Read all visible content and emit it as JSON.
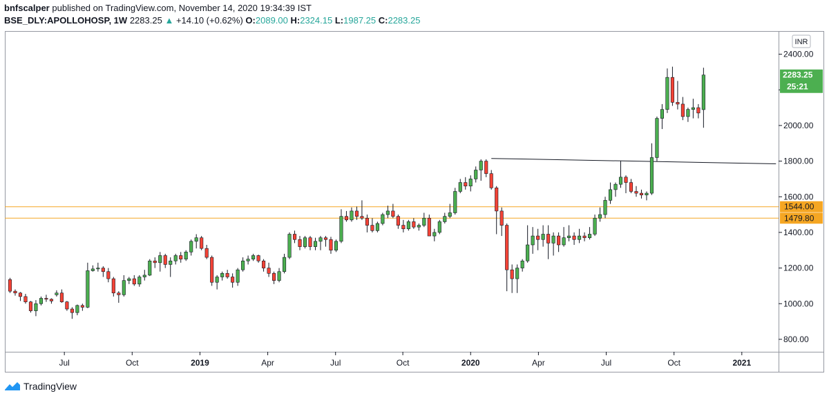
{
  "header": {
    "author": "bnfscalper",
    "published_text": "published on TradingView.com, November 14, 2020 19:34:39 IST",
    "symbol": "BSE_DLY:APOLLOHOSP, 1W",
    "last_price": "2283.25",
    "change_arrow": "▲",
    "change": "+14.10 (+0.62%)",
    "o_label": "O:",
    "o_value": "2089.00",
    "h_label": "H:",
    "h_value": "2324.15",
    "l_label": "L:",
    "l_value": "1987.25",
    "c_label": "C:",
    "c_value": "2283.25"
  },
  "footer": {
    "brand": "TradingView",
    "logo_icon": "tradingview-logo-icon"
  },
  "colors": {
    "up": "#4caf50",
    "down": "#f44336",
    "wick": "#131722",
    "hline": "#f5a623",
    "grid": "#e0e3eb",
    "axis": "#131722"
  },
  "chart_data": {
    "type": "candlestick",
    "currency_label": "INR",
    "ylim": [
      730,
      2530
    ],
    "y_ticks": [
      800,
      1000,
      1200,
      1400,
      1600,
      1800,
      2000,
      2200,
      2400
    ],
    "y_tick_labels": [
      "800.00",
      "1000.00",
      "1200.00",
      "1400.00",
      "1600.00",
      "1800.00",
      "2000.00",
      "2200.00",
      "2400.00"
    ],
    "x_tick_labels": [
      "Jul",
      "Oct",
      "2019",
      "Apr",
      "Jul",
      "Oct",
      "2020",
      "Apr",
      "Jul",
      "Oct",
      "2021"
    ],
    "x_tick_index": [
      10.5,
      23.6,
      36.7,
      49.8,
      62.9,
      75.9,
      89.0,
      102.1,
      115.2,
      128.3,
      141.4
    ],
    "x_index_range": [
      -1,
      148.5
    ],
    "candles": [
      [
        1135,
        1145,
        1060,
        1070
      ],
      [
        1070,
        1080,
        1045,
        1060
      ],
      [
        1060,
        1065,
        1015,
        1040
      ],
      [
        1040,
        1055,
        1000,
        1010
      ],
      [
        1010,
        1015,
        950,
        960
      ],
      [
        960,
        1020,
        930,
        1000
      ],
      [
        1000,
        1040,
        990,
        1030
      ],
      [
        1030,
        1050,
        1010,
        1025
      ],
      [
        1025,
        1030,
        1000,
        1015
      ],
      [
        1050,
        1075,
        1040,
        1060
      ],
      [
        1060,
        1080,
        1005,
        1010
      ],
      [
        1010,
        1015,
        960,
        970
      ],
      [
        970,
        980,
        915,
        950
      ],
      [
        950,
        995,
        935,
        990
      ],
      [
        990,
        1000,
        960,
        980
      ],
      [
        980,
        1230,
        975,
        1185
      ],
      [
        1185,
        1215,
        1180,
        1195
      ],
      [
        1195,
        1230,
        1180,
        1200
      ],
      [
        1200,
        1210,
        1150,
        1180
      ],
      [
        1180,
        1200,
        1120,
        1140
      ],
      [
        1140,
        1150,
        1040,
        1060
      ],
      [
        1060,
        1070,
        1005,
        1050
      ],
      [
        1050,
        1160,
        1040,
        1130
      ],
      [
        1130,
        1150,
        1110,
        1140
      ],
      [
        1140,
        1160,
        1100,
        1110
      ],
      [
        1110,
        1160,
        1095,
        1150
      ],
      [
        1150,
        1190,
        1130,
        1160
      ],
      [
        1160,
        1250,
        1155,
        1240
      ],
      [
        1240,
        1260,
        1200,
        1230
      ],
      [
        1230,
        1290,
        1180,
        1270
      ],
      [
        1270,
        1280,
        1200,
        1220
      ],
      [
        1220,
        1260,
        1150,
        1240
      ],
      [
        1240,
        1280,
        1220,
        1270
      ],
      [
        1270,
        1290,
        1230,
        1250
      ],
      [
        1250,
        1300,
        1240,
        1290
      ],
      [
        1290,
        1360,
        1270,
        1350
      ],
      [
        1350,
        1390,
        1310,
        1370
      ],
      [
        1370,
        1380,
        1300,
        1310
      ],
      [
        1310,
        1330,
        1250,
        1260
      ],
      [
        1260,
        1270,
        1100,
        1120
      ],
      [
        1120,
        1160,
        1080,
        1150
      ],
      [
        1150,
        1180,
        1130,
        1170
      ],
      [
        1170,
        1190,
        1140,
        1150
      ],
      [
        1150,
        1170,
        1090,
        1120
      ],
      [
        1120,
        1200,
        1100,
        1190
      ],
      [
        1190,
        1260,
        1180,
        1240
      ],
      [
        1240,
        1270,
        1220,
        1250
      ],
      [
        1250,
        1280,
        1240,
        1270
      ],
      [
        1270,
        1275,
        1230,
        1240
      ],
      [
        1240,
        1250,
        1180,
        1200
      ],
      [
        1200,
        1230,
        1150,
        1170
      ],
      [
        1170,
        1180,
        1110,
        1130
      ],
      [
        1130,
        1200,
        1120,
        1180
      ],
      [
        1180,
        1280,
        1170,
        1260
      ],
      [
        1260,
        1400,
        1250,
        1390
      ],
      [
        1390,
        1410,
        1340,
        1360
      ],
      [
        1360,
        1380,
        1300,
        1320
      ],
      [
        1320,
        1380,
        1310,
        1370
      ],
      [
        1370,
        1380,
        1300,
        1320
      ],
      [
        1320,
        1370,
        1300,
        1350
      ],
      [
        1350,
        1380,
        1300,
        1370
      ],
      [
        1370,
        1380,
        1320,
        1360
      ],
      [
        1360,
        1375,
        1280,
        1300
      ],
      [
        1300,
        1360,
        1290,
        1350
      ],
      [
        1350,
        1530,
        1340,
        1490
      ],
      [
        1490,
        1520,
        1460,
        1470
      ],
      [
        1470,
        1540,
        1460,
        1520
      ],
      [
        1520,
        1545,
        1470,
        1490
      ],
      [
        1490,
        1580,
        1470,
        1480
      ],
      [
        1480,
        1500,
        1400,
        1440
      ],
      [
        1440,
        1480,
        1400,
        1410
      ],
      [
        1410,
        1460,
        1400,
        1450
      ],
      [
        1450,
        1510,
        1440,
        1500
      ],
      [
        1500,
        1550,
        1480,
        1520
      ],
      [
        1520,
        1560,
        1480,
        1490
      ],
      [
        1490,
        1500,
        1420,
        1440
      ],
      [
        1440,
        1470,
        1400,
        1420
      ],
      [
        1420,
        1470,
        1410,
        1460
      ],
      [
        1460,
        1480,
        1420,
        1430
      ],
      [
        1430,
        1450,
        1410,
        1440
      ],
      [
        1440,
        1510,
        1430,
        1480
      ],
      [
        1480,
        1500,
        1380,
        1380
      ],
      [
        1380,
        1420,
        1350,
        1400
      ],
      [
        1400,
        1470,
        1390,
        1460
      ],
      [
        1460,
        1510,
        1450,
        1490
      ],
      [
        1490,
        1560,
        1480,
        1510
      ],
      [
        1510,
        1650,
        1500,
        1630
      ],
      [
        1630,
        1700,
        1620,
        1680
      ],
      [
        1680,
        1710,
        1640,
        1660
      ],
      [
        1660,
        1720,
        1630,
        1700
      ],
      [
        1700,
        1770,
        1680,
        1750
      ],
      [
        1750,
        1810,
        1690,
        1800
      ],
      [
        1800,
        1810,
        1710,
        1730
      ],
      [
        1730,
        1750,
        1640,
        1650
      ],
      [
        1650,
        1660,
        1390,
        1520
      ],
      [
        1520,
        1540,
        1380,
        1440
      ],
      [
        1440,
        1450,
        1070,
        1190
      ],
      [
        1190,
        1220,
        1060,
        1140
      ],
      [
        1140,
        1220,
        1060,
        1200
      ],
      [
        1200,
        1250,
        1180,
        1240
      ],
      [
        1240,
        1440,
        1230,
        1330
      ],
      [
        1330,
        1430,
        1280,
        1380
      ],
      [
        1380,
        1420,
        1300,
        1360
      ],
      [
        1360,
        1440,
        1320,
        1390
      ],
      [
        1390,
        1440,
        1250,
        1340
      ],
      [
        1340,
        1400,
        1270,
        1380
      ],
      [
        1380,
        1400,
        1290,
        1330
      ],
      [
        1330,
        1430,
        1320,
        1370
      ],
      [
        1370,
        1440,
        1350,
        1380
      ],
      [
        1380,
        1400,
        1330,
        1360
      ],
      [
        1360,
        1420,
        1340,
        1380
      ],
      [
        1380,
        1400,
        1350,
        1370
      ],
      [
        1370,
        1430,
        1360,
        1390
      ],
      [
        1390,
        1500,
        1380,
        1480
      ],
      [
        1480,
        1540,
        1460,
        1500
      ],
      [
        1500,
        1600,
        1480,
        1580
      ],
      [
        1580,
        1680,
        1560,
        1640
      ],
      [
        1640,
        1680,
        1600,
        1670
      ],
      [
        1670,
        1800,
        1650,
        1710
      ],
      [
        1710,
        1720,
        1620,
        1680
      ],
      [
        1680,
        1700,
        1620,
        1630
      ],
      [
        1630,
        1660,
        1600,
        1620
      ],
      [
        1620,
        1640,
        1590,
        1610
      ],
      [
        1610,
        1630,
        1580,
        1620
      ],
      [
        1620,
        1900,
        1610,
        1820
      ],
      [
        1820,
        2050,
        1800,
        2040
      ],
      [
        2040,
        2120,
        1980,
        2090
      ],
      [
        2090,
        2320,
        2070,
        2270
      ],
      [
        2270,
        2330,
        2110,
        2130
      ],
      [
        2130,
        2250,
        2090,
        2120
      ],
      [
        2120,
        2160,
        2030,
        2050
      ],
      [
        2050,
        2100,
        2020,
        2090
      ],
      [
        2090,
        2150,
        2040,
        2100
      ],
      [
        2100,
        2120,
        2040,
        2070
      ],
      [
        2089,
        2324.15,
        1987.25,
        2283.25
      ]
    ],
    "resistance_line": {
      "from": [
        93,
        1815
      ],
      "to": [
        148,
        1785
      ]
    },
    "horizontal_levels": [
      {
        "label": "1544.00",
        "value": 1544
      },
      {
        "label": "1479.80",
        "value": 1479.8
      }
    ],
    "last_price_label": "2283.25",
    "countdown_label": "25:21"
  }
}
